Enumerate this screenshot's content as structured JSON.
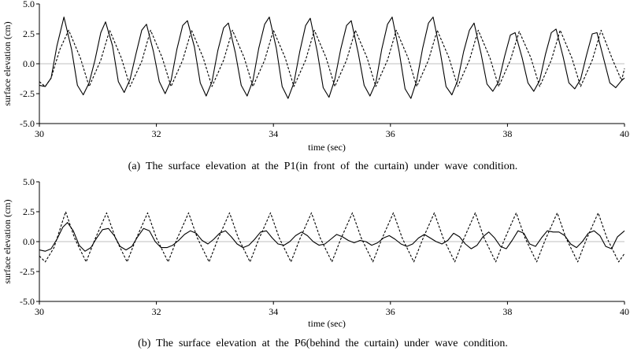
{
  "chart_data": [
    {
      "type": "line",
      "caption": "(a)  The  surface  elevation  at  the  P1(in  front  of  the  curtain)  under  wave  condition.",
      "xlabel": "time (sec)",
      "ylabel": "surface elevation (cm)",
      "xlim": [
        30,
        40
      ],
      "ylim": [
        -5.0,
        5.0
      ],
      "xticks": [
        "30",
        "32",
        "34",
        "36",
        "38",
        "40"
      ],
      "yticks": [
        "5.0",
        "2.5",
        "0.0",
        "-2.5",
        "-5.0"
      ],
      "grid": false,
      "series": [
        {
          "style": "solid",
          "x": [
            30.0,
            30.1,
            30.2,
            30.3,
            30.42,
            30.55,
            30.65,
            30.75,
            30.85,
            30.95,
            31.05,
            31.13,
            31.25,
            31.35,
            31.45,
            31.55,
            31.65,
            31.75,
            31.83,
            31.95,
            32.05,
            32.15,
            32.25,
            32.35,
            32.45,
            32.53,
            32.65,
            32.75,
            32.85,
            32.95,
            33.05,
            33.15,
            33.23,
            33.35,
            33.45,
            33.55,
            33.65,
            33.75,
            33.85,
            33.93,
            34.05,
            34.15,
            34.25,
            34.35,
            34.45,
            34.55,
            34.63,
            34.75,
            34.85,
            34.95,
            35.05,
            35.15,
            35.25,
            35.33,
            35.45,
            35.55,
            35.65,
            35.75,
            35.85,
            35.95,
            36.03,
            36.15,
            36.25,
            36.35,
            36.45,
            36.55,
            36.65,
            36.73,
            36.85,
            36.95,
            37.05,
            37.15,
            37.25,
            37.35,
            37.43,
            37.55,
            37.65,
            37.75,
            37.85,
            37.95,
            38.05,
            38.13,
            38.25,
            38.35,
            38.45,
            38.55,
            38.65,
            38.75,
            38.83,
            38.95,
            39.05,
            39.15,
            39.25,
            39.35,
            39.45,
            39.53,
            39.65,
            39.75,
            39.85,
            39.95,
            40.0
          ],
          "y": [
            -1.8,
            -1.9,
            -1.2,
            1.5,
            3.9,
            1.2,
            -1.8,
            -2.6,
            -1.6,
            0.3,
            2.6,
            3.5,
            1.5,
            -1.5,
            -2.4,
            -1.3,
            0.8,
            2.8,
            3.3,
            1.0,
            -1.5,
            -2.5,
            -1.4,
            1.2,
            3.2,
            3.6,
            1.4,
            -1.6,
            -2.7,
            -1.5,
            1.1,
            3.0,
            3.4,
            0.9,
            -1.8,
            -2.7,
            -1.4,
            1.3,
            3.3,
            3.9,
            1.3,
            -1.9,
            -2.9,
            -1.6,
            1.0,
            3.2,
            3.8,
            1.0,
            -2.0,
            -2.8,
            -1.3,
            1.2,
            3.2,
            3.6,
            0.9,
            -1.8,
            -2.7,
            -1.6,
            1.2,
            3.3,
            3.9,
            1.0,
            -2.1,
            -2.9,
            -1.4,
            1.3,
            3.4,
            3.9,
            1.0,
            -1.9,
            -2.6,
            -1.4,
            1.0,
            2.8,
            3.4,
            0.8,
            -1.7,
            -2.3,
            -1.5,
            0.6,
            2.4,
            2.6,
            0.5,
            -1.6,
            -2.3,
            -1.4,
            0.8,
            2.6,
            2.9,
            0.6,
            -1.6,
            -2.1,
            -1.3,
            0.7,
            2.5,
            2.6,
            0.3,
            -1.6,
            -2.0,
            -1.4,
            -1.2
          ]
        },
        {
          "style": "dashed",
          "x": [
            30.0,
            30.1,
            30.2,
            30.35,
            30.5,
            30.7,
            30.85,
            31.05,
            31.2,
            31.4,
            31.55,
            31.75,
            31.9,
            32.1,
            32.25,
            32.45,
            32.6,
            32.8,
            32.95,
            33.15,
            33.3,
            33.5,
            33.65,
            33.85,
            34.0,
            34.2,
            34.35,
            34.55,
            34.7,
            34.9,
            35.05,
            35.25,
            35.4,
            35.6,
            35.75,
            35.95,
            36.1,
            36.3,
            36.45,
            36.65,
            36.8,
            37.0,
            37.15,
            37.35,
            37.5,
            37.7,
            37.85,
            38.05,
            38.2,
            38.4,
            38.55,
            38.75,
            38.9,
            39.1,
            39.25,
            39.45,
            39.6,
            39.8,
            39.95,
            40.0
          ],
          "y": [
            -1.5,
            -1.9,
            -1.2,
            1.2,
            2.8,
            0.5,
            -1.9,
            0.3,
            2.8,
            0.5,
            -1.9,
            0.2,
            2.8,
            0.5,
            -1.9,
            0.3,
            2.8,
            0.5,
            -1.9,
            0.3,
            2.8,
            0.5,
            -1.9,
            0.3,
            2.8,
            0.5,
            -1.9,
            0.3,
            2.8,
            0.5,
            -1.9,
            0.3,
            2.8,
            0.5,
            -1.9,
            0.3,
            2.8,
            0.5,
            -1.9,
            0.3,
            2.8,
            0.5,
            -1.9,
            0.3,
            2.8,
            0.5,
            -1.9,
            0.3,
            2.7,
            0.5,
            -1.9,
            0.3,
            2.8,
            0.5,
            -1.9,
            0.3,
            2.8,
            0.3,
            -1.4,
            -0.4
          ]
        }
      ]
    },
    {
      "type": "line",
      "caption": "(b)  The  surface  elevation  at  the  P6(behind  the  curtain)  under  wave  condition.",
      "xlabel": "time (sec)",
      "ylabel": "surface elevation (cm)",
      "xlim": [
        30,
        40
      ],
      "ylim": [
        -5.0,
        5.0
      ],
      "xticks": [
        "30",
        "32",
        "34",
        "36",
        "38",
        "40"
      ],
      "yticks": [
        "5.0",
        "2.5",
        "0.0",
        "-2.5",
        "-5.0"
      ],
      "grid": false,
      "series": [
        {
          "style": "solid",
          "x": [
            30.0,
            30.1,
            30.2,
            30.3,
            30.4,
            30.48,
            30.58,
            30.68,
            30.78,
            30.88,
            30.98,
            31.08,
            31.18,
            31.28,
            31.38,
            31.48,
            31.58,
            31.68,
            31.78,
            31.88,
            31.98,
            32.08,
            32.18,
            32.28,
            32.38,
            32.48,
            32.58,
            32.68,
            32.78,
            32.88,
            32.98,
            33.08,
            33.18,
            33.28,
            33.38,
            33.48,
            33.58,
            33.68,
            33.78,
            33.88,
            33.98,
            34.08,
            34.18,
            34.28,
            34.38,
            34.48,
            34.58,
            34.68,
            34.78,
            34.88,
            34.98,
            35.08,
            35.18,
            35.28,
            35.38,
            35.48,
            35.58,
            35.68,
            35.78,
            35.88,
            35.98,
            36.08,
            36.18,
            36.28,
            36.38,
            36.48,
            36.58,
            36.68,
            36.78,
            36.88,
            36.98,
            37.08,
            37.18,
            37.28,
            37.38,
            37.48,
            37.58,
            37.68,
            37.78,
            37.88,
            37.98,
            38.08,
            38.18,
            38.28,
            38.38,
            38.48,
            38.58,
            38.68,
            38.78,
            38.88,
            38.98,
            39.08,
            39.18,
            39.28,
            39.38,
            39.48,
            39.58,
            39.68,
            39.78,
            39.88,
            40.0
          ],
          "y": [
            -0.7,
            -0.8,
            -0.6,
            0.2,
            1.2,
            1.6,
            0.9,
            -0.3,
            -0.8,
            -0.5,
            0.3,
            1.0,
            1.1,
            0.5,
            -0.4,
            -0.7,
            -0.4,
            0.4,
            1.1,
            0.9,
            0.0,
            -0.5,
            -0.5,
            -0.3,
            0.1,
            0.6,
            0.9,
            0.7,
            0.1,
            -0.2,
            0.2,
            0.7,
            0.9,
            0.4,
            -0.2,
            -0.5,
            -0.3,
            0.2,
            0.8,
            0.9,
            0.3,
            -0.2,
            -0.3,
            0.0,
            0.5,
            0.8,
            0.5,
            0.0,
            -0.3,
            -0.2,
            0.2,
            0.6,
            0.4,
            0.1,
            -0.1,
            0.1,
            0.0,
            -0.3,
            -0.1,
            0.3,
            0.5,
            0.2,
            -0.2,
            -0.4,
            -0.2,
            0.3,
            0.6,
            0.3,
            0.0,
            -0.2,
            0.1,
            0.7,
            0.4,
            -0.2,
            -0.6,
            -0.3,
            0.4,
            0.8,
            0.3,
            -0.4,
            -0.6,
            0.1,
            0.9,
            0.7,
            -0.2,
            -0.4,
            0.3,
            0.9,
            0.8,
            0.8,
            0.5,
            -0.2,
            -0.5,
            0.0,
            0.7,
            0.9,
            0.5,
            -0.4,
            -0.6,
            0.4,
            0.9
          ]
        },
        {
          "style": "dashed",
          "x": [
            30.0,
            30.1,
            30.25,
            30.45,
            30.6,
            30.8,
            30.95,
            31.15,
            31.3,
            31.5,
            31.65,
            31.85,
            32.0,
            32.2,
            32.35,
            32.55,
            32.7,
            32.9,
            33.05,
            33.25,
            33.4,
            33.6,
            33.75,
            33.95,
            34.1,
            34.3,
            34.45,
            34.65,
            34.8,
            35.0,
            35.15,
            35.35,
            35.5,
            35.7,
            35.85,
            36.05,
            36.2,
            36.4,
            36.55,
            36.75,
            36.9,
            37.1,
            37.25,
            37.45,
            37.6,
            37.8,
            37.95,
            38.15,
            38.3,
            38.5,
            38.65,
            38.85,
            39.0,
            39.2,
            39.35,
            39.55,
            39.7,
            39.9,
            40.0
          ],
          "y": [
            -1.2,
            -1.7,
            -0.5,
            2.5,
            0.3,
            -1.7,
            0.2,
            2.4,
            0.3,
            -1.7,
            0.2,
            2.4,
            0.3,
            -1.7,
            0.2,
            2.4,
            0.3,
            -1.7,
            0.2,
            2.4,
            0.3,
            -1.7,
            0.2,
            2.4,
            0.3,
            -1.7,
            0.2,
            2.4,
            0.3,
            -1.7,
            0.2,
            2.4,
            0.3,
            -1.7,
            0.2,
            2.4,
            0.3,
            -1.7,
            0.2,
            2.4,
            0.3,
            -1.7,
            0.2,
            2.4,
            0.3,
            -1.7,
            0.2,
            2.4,
            0.3,
            -1.7,
            0.2,
            2.4,
            0.3,
            -1.7,
            0.2,
            2.4,
            0.3,
            -1.7,
            -1.0
          ]
        }
      ]
    }
  ]
}
